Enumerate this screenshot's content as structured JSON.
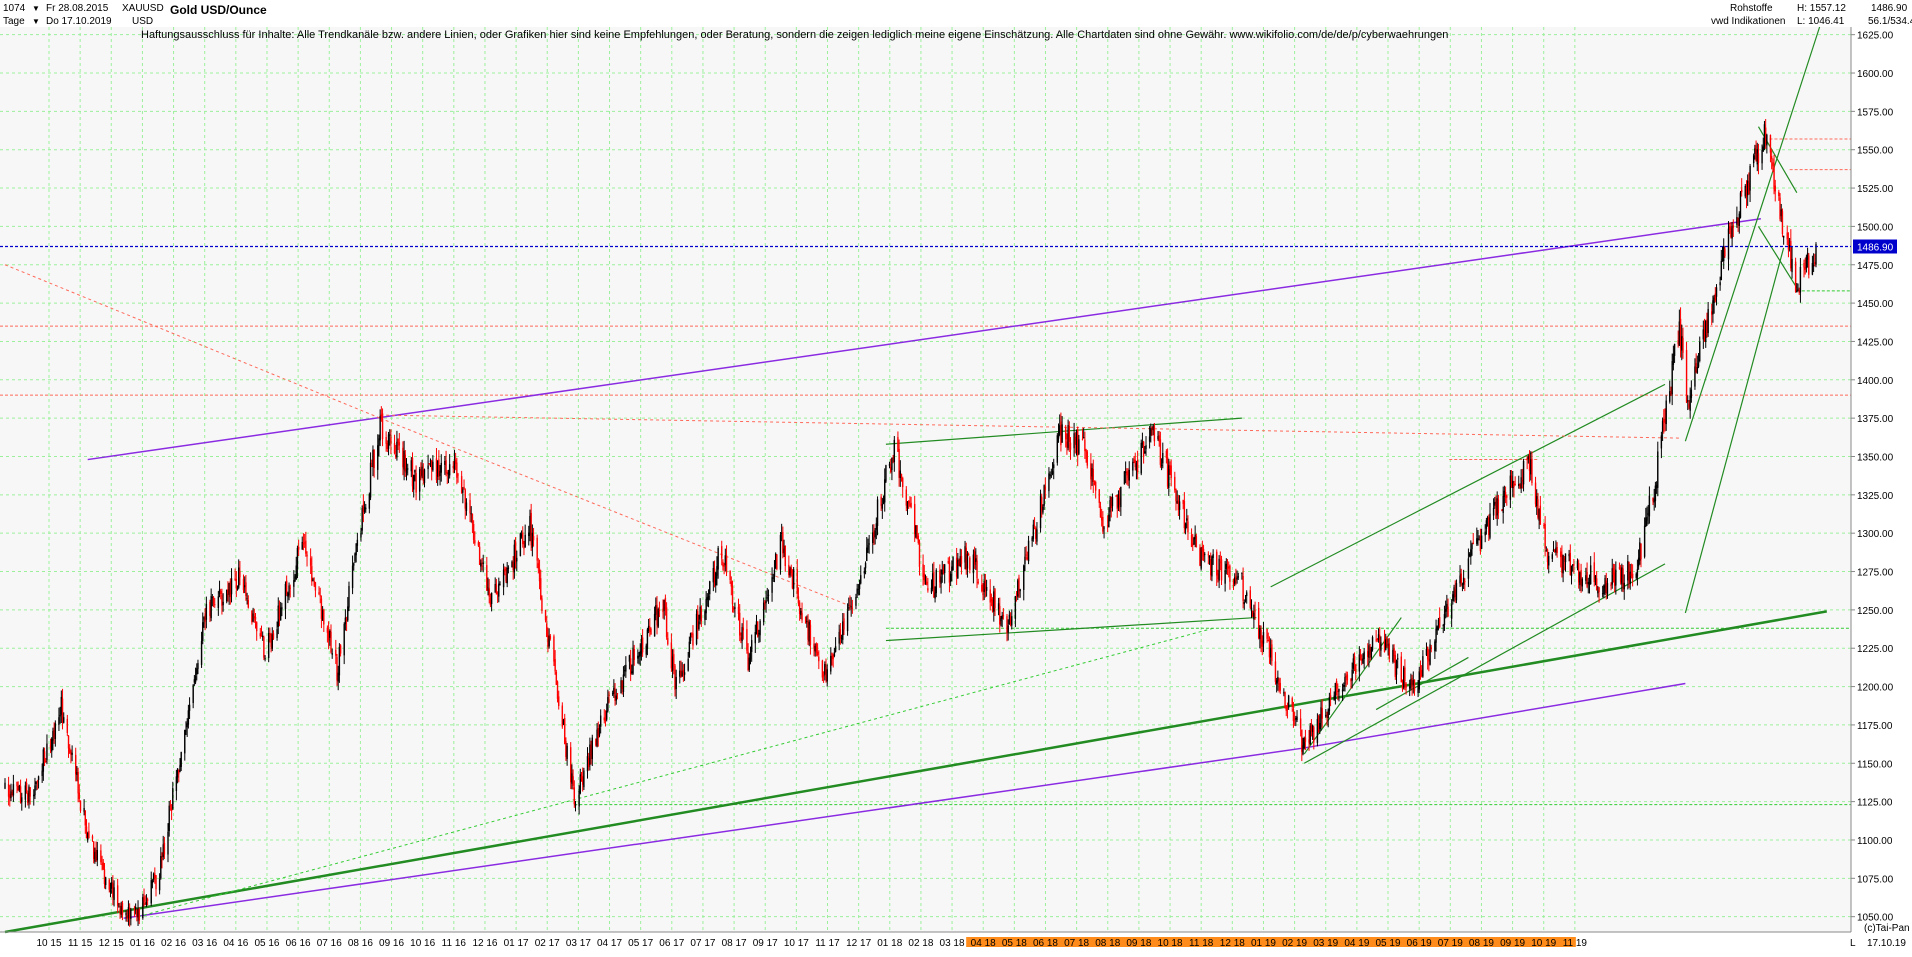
{
  "header": {
    "bar_count": "1074",
    "period_label": "Tage",
    "date_from": "Fr 28.08.2015",
    "date_to": "Do 17.10.2019",
    "symbol": "XAUUSD",
    "currency": "USD",
    "title": "Gold USD/Ounce",
    "disclaimer": "Haftungsausschluss für Inhalte: Alle Trendkanäle bzw. andere Linien, oder Grafiken hier sind keine Empfehlungen, oder Beratung, sondern die zeigen lediglich meine eigene Einschätzung. Alle Chartdaten sind ohne Gewähr.  www.wikifolio.com/de/de/p/cyberwaehrungen",
    "category": "Rohstoffe",
    "indicator_source": "vwd Indikationen",
    "high_label": "H: 1557.12",
    "low_label": "L: 1046.41",
    "last_value": "1486.90",
    "ratio_label": "56.1/534.4"
  },
  "footer": {
    "copyright": "(c)Tai-Pan",
    "end_date": "17.10.19",
    "scale_marker": "L"
  },
  "colors": {
    "up_candle": "#000000",
    "down_candle": "#ff0000",
    "grid": "#9cf09c",
    "resistance_line": "#8a2be2",
    "trend_line": "#228b22",
    "dotted_red": "#ff6a5a",
    "current_price_line": "#0000cc",
    "price_badge": "#0000cc",
    "axis_highlight": "#ff8c1a"
  },
  "chart_data": {
    "type": "candlestick",
    "title": "Gold USD/Ounce",
    "yaxis": {
      "range": [
        1040,
        1630
      ],
      "ticks": [
        1050,
        1075,
        1100,
        1125,
        1150,
        1175,
        1200,
        1225,
        1250,
        1275,
        1300,
        1325,
        1350,
        1375,
        1400,
        1425,
        1450,
        1475,
        1500,
        1525,
        1550,
        1575,
        1600,
        1625
      ],
      "tick_labels": [
        "1050.00",
        "1075.00",
        "1100.00",
        "1125.00",
        "1150.00",
        "1175.00",
        "1200.00",
        "1225.00",
        "1250.00",
        "1275.00",
        "1300.00",
        "1325.00",
        "1350.00",
        "1375.00",
        "1400.00",
        "1425.00",
        "1450.00",
        "1475.00",
        "1500.00",
        "1525.00",
        "1550.00",
        "1575.00",
        "1600.00",
        "1625.00"
      ],
      "current_value": 1486.9,
      "current_value_label": "1486.90"
    },
    "xaxis": {
      "labels": [
        "10 15",
        "11 15",
        "12 15",
        "01 16",
        "02 16",
        "03 16",
        "04 16",
        "05 16",
        "06 16",
        "07 16",
        "08 16",
        "09 16",
        "10 16",
        "11 16",
        "12 16",
        "01 17",
        "02 17",
        "03 17",
        "04 17",
        "05 17",
        "06 17",
        "07 17",
        "08 17",
        "09 17",
        "10 17",
        "11 17",
        "12 17",
        "01 18",
        "02 18",
        "03 18",
        "04 18",
        "05 18",
        "06 18",
        "07 18",
        "08 18",
        "09 18",
        "10 18",
        "11 18",
        "12 18",
        "01 19",
        "02 19",
        "03 19",
        "04 19",
        "05 19",
        "06 19",
        "07 19",
        "08 19",
        "09 19",
        "10 19",
        "11 19"
      ],
      "highlighted_from": "04 18",
      "start_date": "2015-08-28",
      "end_date": "2019-10-17"
    },
    "grid": true,
    "price_path": [
      [
        "2015-08-28",
        1134
      ],
      [
        "2015-09-18",
        1130
      ],
      [
        "2015-10-14",
        1186
      ],
      [
        "2015-11-05",
        1104
      ],
      [
        "2015-12-03",
        1052
      ],
      [
        "2015-12-17",
        1050
      ],
      [
        "2016-01-04",
        1080
      ],
      [
        "2016-02-11",
        1247
      ],
      [
        "2016-03-10",
        1270
      ],
      [
        "2016-04-01",
        1222
      ],
      [
        "2016-05-02",
        1294
      ],
      [
        "2016-05-31",
        1212
      ],
      [
        "2016-06-24",
        1322
      ],
      [
        "2016-07-06",
        1370
      ],
      [
        "2016-08-05",
        1335
      ],
      [
        "2016-09-06",
        1349
      ],
      [
        "2016-10-07",
        1255
      ],
      [
        "2016-11-08",
        1305
      ],
      [
        "2016-12-15",
        1128
      ],
      [
        "2017-01-10",
        1185
      ],
      [
        "2017-02-27",
        1254
      ],
      [
        "2017-03-10",
        1200
      ],
      [
        "2017-04-17",
        1290
      ],
      [
        "2017-05-09",
        1215
      ],
      [
        "2017-06-06",
        1294
      ],
      [
        "2017-07-10",
        1207
      ],
      [
        "2017-08-07",
        1260
      ],
      [
        "2017-09-08",
        1357
      ],
      [
        "2017-10-06",
        1263
      ],
      [
        "2017-11-08",
        1285
      ],
      [
        "2017-12-12",
        1238
      ],
      [
        "2018-01-25",
        1365
      ],
      [
        "2018-02-15",
        1354
      ],
      [
        "2018-03-01",
        1307
      ],
      [
        "2018-04-11",
        1365
      ],
      [
        "2018-05-21",
        1285
      ],
      [
        "2018-06-25",
        1266
      ],
      [
        "2018-07-19",
        1219
      ],
      [
        "2018-08-16",
        1160
      ],
      [
        "2018-09-10",
        1195
      ],
      [
        "2018-10-15",
        1234
      ],
      [
        "2018-11-13",
        1197
      ],
      [
        "2018-12-31",
        1282
      ],
      [
        "2019-01-31",
        1325
      ],
      [
        "2019-02-20",
        1345
      ],
      [
        "2019-03-07",
        1285
      ],
      [
        "2019-04-23",
        1267
      ],
      [
        "2019-05-20",
        1277
      ],
      [
        "2019-06-04",
        1330
      ],
      [
        "2019-06-25",
        1435
      ],
      [
        "2019-07-02",
        1384
      ],
      [
        "2019-08-07",
        1500
      ],
      [
        "2019-09-04",
        1557
      ],
      [
        "2019-10-01",
        1460
      ],
      [
        "2019-10-17",
        1486
      ]
    ],
    "trend_lines": [
      {
        "color": "purple",
        "style": "solid",
        "from": [
          "2015-12-05",
          1049
        ],
        "to": [
          "2018-08-16",
          1160
        ]
      },
      {
        "color": "purple",
        "style": "solid",
        "from": [
          "2018-08-16",
          1160
        ],
        "to": [
          "2019-06-30",
          1202
        ]
      },
      {
        "color": "purple",
        "style": "solid",
        "from": [
          "2015-11-05",
          1348
        ],
        "to": [
          "2019-09-01",
          1505
        ]
      },
      {
        "color": "green",
        "style": "bold",
        "from": [
          "2015-08-28",
          1040
        ],
        "to": [
          "2019-10-26",
          1249
        ]
      },
      {
        "color": "green",
        "style": "solid",
        "from": [
          "2017-09-01",
          1358
        ],
        "to": [
          "2018-06-25",
          1375
        ]
      },
      {
        "color": "green",
        "style": "solid",
        "from": [
          "2017-09-01",
          1230
        ],
        "to": [
          "2018-07-07",
          1245
        ]
      },
      {
        "color": "green",
        "style": "solid",
        "from": [
          "2018-07-19",
          1265
        ],
        "to": [
          "2019-06-13",
          1397
        ]
      },
      {
        "color": "green",
        "style": "solid",
        "from": [
          "2018-08-16",
          1150
        ],
        "to": [
          "2019-06-13",
          1280
        ]
      },
      {
        "color": "green",
        "style": "solid",
        "from": [
          "2018-08-16",
          1156
        ],
        "to": [
          "2018-11-05",
          1245
        ]
      },
      {
        "color": "green",
        "style": "solid",
        "from": [
          "2018-10-15",
          1185
        ],
        "to": [
          "2018-12-31",
          1219
        ]
      },
      {
        "color": "green",
        "style": "solid",
        "from": [
          "2019-06-30",
          1360
        ],
        "to": [
          "2019-10-20",
          1630
        ]
      },
      {
        "color": "green",
        "style": "solid",
        "from": [
          "2019-06-30",
          1248
        ],
        "to": [
          "2019-09-20",
          1486
        ]
      },
      {
        "color": "green",
        "style": "solid",
        "from": [
          "2019-08-30",
          1565
        ],
        "to": [
          "2019-10-01",
          1522
        ]
      },
      {
        "color": "green",
        "style": "solid",
        "from": [
          "2019-08-30",
          1500
        ],
        "to": [
          "2019-10-01",
          1460
        ]
      },
      {
        "color": "red",
        "style": "dotted",
        "from": [
          "2015-08-28",
          1475
        ],
        "to": [
          "2016-07-06",
          1375
        ]
      },
      {
        "color": "red",
        "style": "dotted",
        "from": [
          "2016-07-06",
          1375
        ],
        "to": [
          "2017-08-04",
          1252
        ]
      },
      {
        "color": "red",
        "style": "dotted",
        "from": [
          "2016-07-06",
          1377
        ],
        "to": [
          "2019-06-25",
          1362
        ]
      },
      {
        "color": "green",
        "style": "dotted",
        "from": [
          "2015-12-17",
          1050
        ],
        "to": [
          "2018-06-01",
          1238
        ]
      }
    ],
    "horizontal_levels": [
      {
        "color": "red",
        "value": 1435
      },
      {
        "color": "red",
        "value": 1390
      },
      {
        "color": "red",
        "value": 1348,
        "from": "2018-12-15"
      },
      {
        "color": "red",
        "value": 1557,
        "from": "2019-09-04"
      },
      {
        "color": "red",
        "value": 1537,
        "from": "2019-09-25"
      },
      {
        "color": "green",
        "value": 1458,
        "from": "2019-10-01"
      },
      {
        "color": "green",
        "value": 1238,
        "from": "2017-09-01"
      },
      {
        "color": "green",
        "value": 1123,
        "from": "2016-12-15"
      }
    ]
  }
}
